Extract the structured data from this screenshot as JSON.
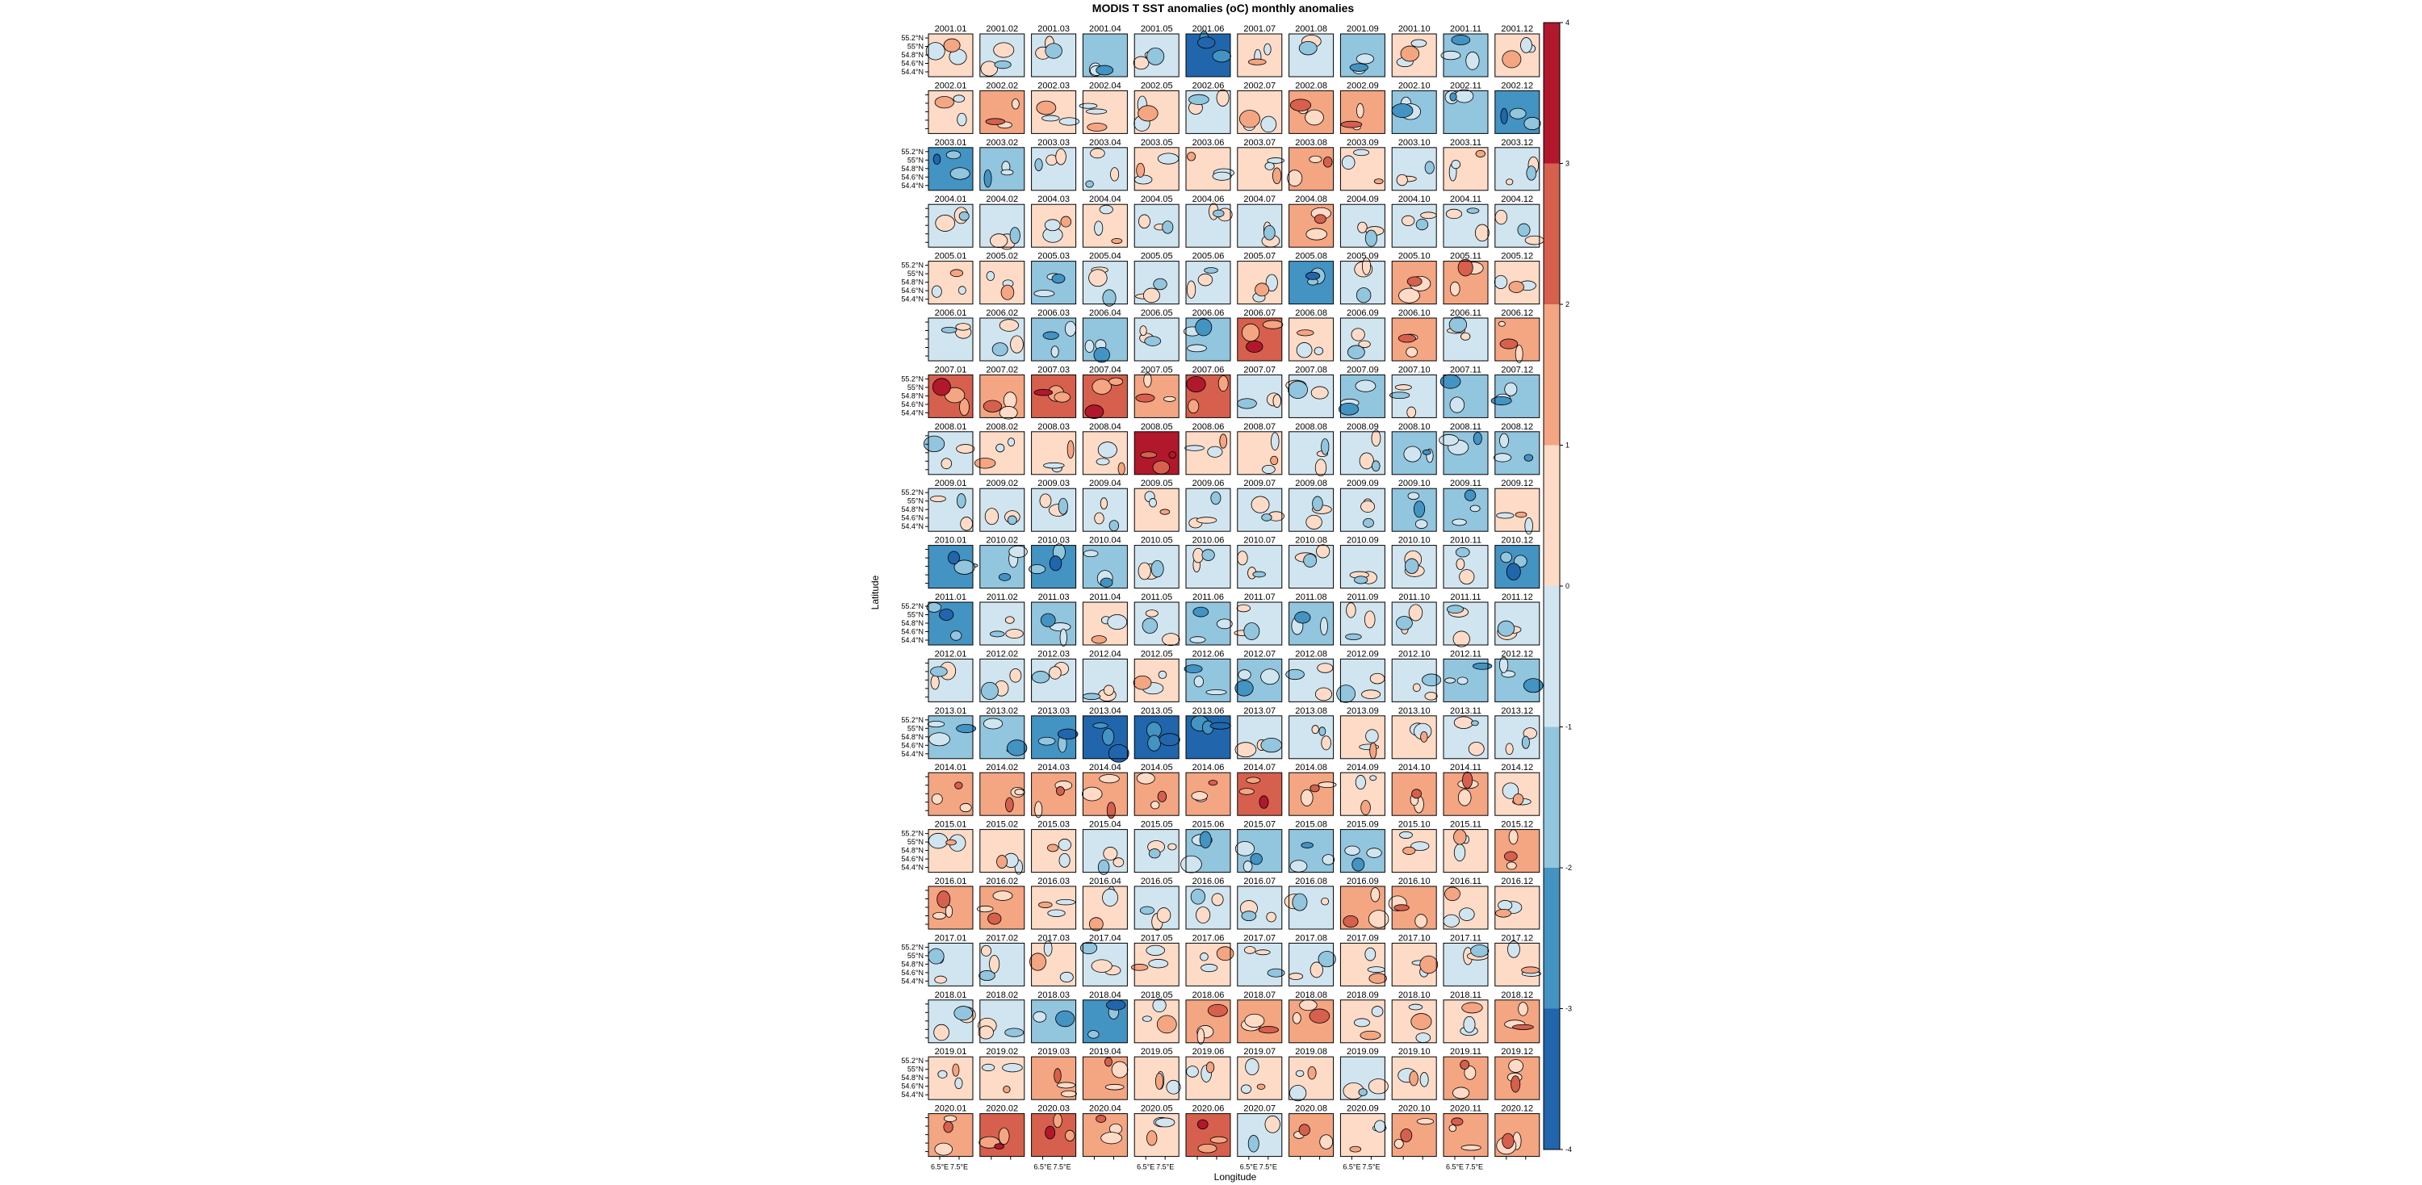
{
  "title": "MODIS T SST anomalies (oC) monthly anomalies",
  "xlabel": "Longitude",
  "ylabel": "Latitude",
  "chart_data": {
    "type": "heatmap",
    "title": "MODIS T SST anomalies (oC) monthly anomalies",
    "xlabel": "Longitude",
    "ylabel": "Latitude",
    "panel_layout": {
      "rows": 20,
      "columns": 12
    },
    "x_tick_labels": [
      "6.5°E",
      "7.5°E"
    ],
    "y_tick_labels": [
      "55.2°N",
      "55°N",
      "54.8°N",
      "54.6°N",
      "54.4°N"
    ],
    "colorbar": {
      "range": [
        -4,
        4
      ],
      "ticks": [
        "-4",
        "-3",
        "-2",
        "-1",
        "0",
        "1",
        "2",
        "3",
        "4"
      ],
      "bins": [
        {
          "from": -4,
          "to": -3,
          "color": "#2166ac"
        },
        {
          "from": -3,
          "to": -2,
          "color": "#4393c3"
        },
        {
          "from": -2,
          "to": -1,
          "color": "#92c5de"
        },
        {
          "from": -1,
          "to": 0,
          "color": "#d1e5f0"
        },
        {
          "from": 0,
          "to": 1,
          "color": "#fddbc7"
        },
        {
          "from": 1,
          "to": 2,
          "color": "#f4a582"
        },
        {
          "from": 2,
          "to": 3,
          "color": "#d6604d"
        },
        {
          "from": 3,
          "to": 4,
          "color": "#b2182b"
        }
      ]
    },
    "panels": [
      {
        "label": "2001.01",
        "mean_anomaly": 0.5
      },
      {
        "label": "2001.02",
        "mean_anomaly": -0.5
      },
      {
        "label": "2001.03",
        "mean_anomaly": -0.5
      },
      {
        "label": "2001.04",
        "mean_anomaly": -1.5
      },
      {
        "label": "2001.05",
        "mean_anomaly": -0.5
      },
      {
        "label": "2001.06",
        "mean_anomaly": -3.5
      },
      {
        "label": "2001.07",
        "mean_anomaly": 0.5
      },
      {
        "label": "2001.08",
        "mean_anomaly": -0.5
      },
      {
        "label": "2001.09",
        "mean_anomaly": -1.5
      },
      {
        "label": "2001.10",
        "mean_anomaly": 0.5
      },
      {
        "label": "2001.11",
        "mean_anomaly": -1.5
      },
      {
        "label": "2001.12",
        "mean_anomaly": 0.5
      },
      {
        "label": "2002.01",
        "mean_anomaly": 0.5
      },
      {
        "label": "2002.02",
        "mean_anomaly": 1.5
      },
      {
        "label": "2002.03",
        "mean_anomaly": 0.5
      },
      {
        "label": "2002.04",
        "mean_anomaly": 0.5
      },
      {
        "label": "2002.05",
        "mean_anomaly": 0.5
      },
      {
        "label": "2002.06",
        "mean_anomaly": -0.5
      },
      {
        "label": "2002.07",
        "mean_anomaly": 0.5
      },
      {
        "label": "2002.08",
        "mean_anomaly": 1.5
      },
      {
        "label": "2002.09",
        "mean_anomaly": 1.5
      },
      {
        "label": "2002.10",
        "mean_anomaly": -1.5
      },
      {
        "label": "2002.11",
        "mean_anomaly": -1.5
      },
      {
        "label": "2002.12",
        "mean_anomaly": -2.5
      },
      {
        "label": "2003.01",
        "mean_anomaly": -2.5
      },
      {
        "label": "2003.02",
        "mean_anomaly": -1.5
      },
      {
        "label": "2003.03",
        "mean_anomaly": -0.5
      },
      {
        "label": "2003.04",
        "mean_anomaly": -0.5
      },
      {
        "label": "2003.05",
        "mean_anomaly": 0.5
      },
      {
        "label": "2003.06",
        "mean_anomaly": 0.5
      },
      {
        "label": "2003.07",
        "mean_anomaly": 0.5
      },
      {
        "label": "2003.08",
        "mean_anomaly": 1.5
      },
      {
        "label": "2003.09",
        "mean_anomaly": 0.5
      },
      {
        "label": "2003.10",
        "mean_anomaly": -0.5
      },
      {
        "label": "2003.11",
        "mean_anomaly": 0.5
      },
      {
        "label": "2003.12",
        "mean_anomaly": -0.5
      },
      {
        "label": "2004.01",
        "mean_anomaly": -0.5
      },
      {
        "label": "2004.02",
        "mean_anomaly": -0.5
      },
      {
        "label": "2004.03",
        "mean_anomaly": 0.5
      },
      {
        "label": "2004.04",
        "mean_anomaly": 0.5
      },
      {
        "label": "2004.05",
        "mean_anomaly": -0.5
      },
      {
        "label": "2004.06",
        "mean_anomaly": -0.5
      },
      {
        "label": "2004.07",
        "mean_anomaly": -0.5
      },
      {
        "label": "2004.08",
        "mean_anomaly": 1.5
      },
      {
        "label": "2004.09",
        "mean_anomaly": -0.5
      },
      {
        "label": "2004.10",
        "mean_anomaly": -0.5
      },
      {
        "label": "2004.11",
        "mean_anomaly": -0.5
      },
      {
        "label": "2004.12",
        "mean_anomaly": -0.5
      },
      {
        "label": "2005.01",
        "mean_anomaly": 0.5
      },
      {
        "label": "2005.02",
        "mean_anomaly": 0.5
      },
      {
        "label": "2005.03",
        "mean_anomaly": -1.5
      },
      {
        "label": "2005.04",
        "mean_anomaly": -0.5
      },
      {
        "label": "2005.05",
        "mean_anomaly": -0.5
      },
      {
        "label": "2005.06",
        "mean_anomaly": -0.5
      },
      {
        "label": "2005.07",
        "mean_anomaly": 0.5
      },
      {
        "label": "2005.08",
        "mean_anomaly": -2.5
      },
      {
        "label": "2005.09",
        "mean_anomaly": -0.5
      },
      {
        "label": "2005.10",
        "mean_anomaly": 1.5
      },
      {
        "label": "2005.11",
        "mean_anomaly": 1.5
      },
      {
        "label": "2005.12",
        "mean_anomaly": 0.5
      },
      {
        "label": "2006.01",
        "mean_anomaly": -0.5
      },
      {
        "label": "2006.02",
        "mean_anomaly": -0.5
      },
      {
        "label": "2006.03",
        "mean_anomaly": -1.5
      },
      {
        "label": "2006.04",
        "mean_anomaly": -1.5
      },
      {
        "label": "2006.05",
        "mean_anomaly": -0.5
      },
      {
        "label": "2006.06",
        "mean_anomaly": -1.5
      },
      {
        "label": "2006.07",
        "mean_anomaly": 2.5
      },
      {
        "label": "2006.08",
        "mean_anomaly": 0.5
      },
      {
        "label": "2006.09",
        "mean_anomaly": -0.5
      },
      {
        "label": "2006.10",
        "mean_anomaly": 1.5
      },
      {
        "label": "2006.11",
        "mean_anomaly": -0.5
      },
      {
        "label": "2006.12",
        "mean_anomaly": 1.5
      },
      {
        "label": "2007.01",
        "mean_anomaly": 2.5
      },
      {
        "label": "2007.02",
        "mean_anomaly": 1.5
      },
      {
        "label": "2007.03",
        "mean_anomaly": 2.5
      },
      {
        "label": "2007.04",
        "mean_anomaly": 2.5
      },
      {
        "label": "2007.05",
        "mean_anomaly": 1.5
      },
      {
        "label": "2007.06",
        "mean_anomaly": 2.5
      },
      {
        "label": "2007.07",
        "mean_anomaly": -0.5
      },
      {
        "label": "2007.08",
        "mean_anomaly": -0.5
      },
      {
        "label": "2007.09",
        "mean_anomaly": -1.5
      },
      {
        "label": "2007.10",
        "mean_anomaly": -0.5
      },
      {
        "label": "2007.11",
        "mean_anomaly": -1.5
      },
      {
        "label": "2007.12",
        "mean_anomaly": -1.5
      },
      {
        "label": "2008.01",
        "mean_anomaly": -0.5
      },
      {
        "label": "2008.02",
        "mean_anomaly": 0.5
      },
      {
        "label": "2008.03",
        "mean_anomaly": 0.5
      },
      {
        "label": "2008.04",
        "mean_anomaly": 0.5
      },
      {
        "label": "2008.05",
        "mean_anomaly": 3.5
      },
      {
        "label": "2008.06",
        "mean_anomaly": 0.5
      },
      {
        "label": "2008.07",
        "mean_anomaly": 0.5
      },
      {
        "label": "2008.08",
        "mean_anomaly": -0.5
      },
      {
        "label": "2008.09",
        "mean_anomaly": -0.5
      },
      {
        "label": "2008.10",
        "mean_anomaly": -1.5
      },
      {
        "label": "2008.11",
        "mean_anomaly": -1.5
      },
      {
        "label": "2008.12",
        "mean_anomaly": -1.5
      },
      {
        "label": "2009.01",
        "mean_anomaly": -0.5
      },
      {
        "label": "2009.02",
        "mean_anomaly": -0.5
      },
      {
        "label": "2009.03",
        "mean_anomaly": -0.5
      },
      {
        "label": "2009.04",
        "mean_anomaly": -0.5
      },
      {
        "label": "2009.05",
        "mean_anomaly": 0.5
      },
      {
        "label": "2009.06",
        "mean_anomaly": -0.5
      },
      {
        "label": "2009.07",
        "mean_anomaly": -0.5
      },
      {
        "label": "2009.08",
        "mean_anomaly": -0.5
      },
      {
        "label": "2009.09",
        "mean_anomaly": -0.5
      },
      {
        "label": "2009.10",
        "mean_anomaly": -1.5
      },
      {
        "label": "2009.11",
        "mean_anomaly": -1.5
      },
      {
        "label": "2009.12",
        "mean_anomaly": 0.5
      },
      {
        "label": "2010.01",
        "mean_anomaly": -2.5
      },
      {
        "label": "2010.02",
        "mean_anomaly": -1.5
      },
      {
        "label": "2010.03",
        "mean_anomaly": -2.5
      },
      {
        "label": "2010.04",
        "mean_anomaly": -1.5
      },
      {
        "label": "2010.05",
        "mean_anomaly": -0.5
      },
      {
        "label": "2010.06",
        "mean_anomaly": -0.5
      },
      {
        "label": "2010.07",
        "mean_anomaly": -0.5
      },
      {
        "label": "2010.08",
        "mean_anomaly": -0.5
      },
      {
        "label": "2010.09",
        "mean_anomaly": -0.5
      },
      {
        "label": "2010.10",
        "mean_anomaly": -0.5
      },
      {
        "label": "2010.11",
        "mean_anomaly": -0.5
      },
      {
        "label": "2010.12",
        "mean_anomaly": -2.5
      },
      {
        "label": "2011.01",
        "mean_anomaly": -2.5
      },
      {
        "label": "2011.02",
        "mean_anomaly": -0.5
      },
      {
        "label": "2011.03",
        "mean_anomaly": -1.5
      },
      {
        "label": "2011.04",
        "mean_anomaly": 0.5
      },
      {
        "label": "2011.05",
        "mean_anomaly": -0.5
      },
      {
        "label": "2011.06",
        "mean_anomaly": -1.5
      },
      {
        "label": "2011.07",
        "mean_anomaly": -0.5
      },
      {
        "label": "2011.08",
        "mean_anomaly": -1.5
      },
      {
        "label": "2011.09",
        "mean_anomaly": -0.5
      },
      {
        "label": "2011.10",
        "mean_anomaly": -0.5
      },
      {
        "label": "2011.11",
        "mean_anomaly": -0.5
      },
      {
        "label": "2011.12",
        "mean_anomaly": -0.5
      },
      {
        "label": "2012.01",
        "mean_anomaly": -0.5
      },
      {
        "label": "2012.02",
        "mean_anomaly": -0.5
      },
      {
        "label": "2012.03",
        "mean_anomaly": -0.5
      },
      {
        "label": "2012.04",
        "mean_anomaly": -0.5
      },
      {
        "label": "2012.05",
        "mean_anomaly": 0.5
      },
      {
        "label": "2012.06",
        "mean_anomaly": -1.5
      },
      {
        "label": "2012.07",
        "mean_anomaly": -1.5
      },
      {
        "label": "2012.08",
        "mean_anomaly": -0.5
      },
      {
        "label": "2012.09",
        "mean_anomaly": -0.5
      },
      {
        "label": "2012.10",
        "mean_anomaly": -0.5
      },
      {
        "label": "2012.11",
        "mean_anomaly": -1.5
      },
      {
        "label": "2012.12",
        "mean_anomaly": -1.5
      },
      {
        "label": "2013.01",
        "mean_anomaly": -1.5
      },
      {
        "label": "2013.02",
        "mean_anomaly": -1.5
      },
      {
        "label": "2013.03",
        "mean_anomaly": -2.5
      },
      {
        "label": "2013.04",
        "mean_anomaly": -3.5
      },
      {
        "label": "2013.05",
        "mean_anomaly": -3.5
      },
      {
        "label": "2013.06",
        "mean_anomaly": -3.5
      },
      {
        "label": "2013.07",
        "mean_anomaly": -0.5
      },
      {
        "label": "2013.08",
        "mean_anomaly": -0.5
      },
      {
        "label": "2013.09",
        "mean_anomaly": 0.5
      },
      {
        "label": "2013.10",
        "mean_anomaly": 0.5
      },
      {
        "label": "2013.11",
        "mean_anomaly": -0.5
      },
      {
        "label": "2013.12",
        "mean_anomaly": -0.5
      },
      {
        "label": "2014.01",
        "mean_anomaly": 1.5
      },
      {
        "label": "2014.02",
        "mean_anomaly": 1.5
      },
      {
        "label": "2014.03",
        "mean_anomaly": 1.5
      },
      {
        "label": "2014.04",
        "mean_anomaly": 1.5
      },
      {
        "label": "2014.05",
        "mean_anomaly": 1.5
      },
      {
        "label": "2014.06",
        "mean_anomaly": 1.5
      },
      {
        "label": "2014.07",
        "mean_anomaly": 2.5
      },
      {
        "label": "2014.08",
        "mean_anomaly": 1.5
      },
      {
        "label": "2014.09",
        "mean_anomaly": 0.5
      },
      {
        "label": "2014.10",
        "mean_anomaly": 1.5
      },
      {
        "label": "2014.11",
        "mean_anomaly": 1.5
      },
      {
        "label": "2014.12",
        "mean_anomaly": 0.5
      },
      {
        "label": "2015.01",
        "mean_anomaly": 0.5
      },
      {
        "label": "2015.02",
        "mean_anomaly": 0.5
      },
      {
        "label": "2015.03",
        "mean_anomaly": 0.5
      },
      {
        "label": "2015.04",
        "mean_anomaly": -0.5
      },
      {
        "label": "2015.05",
        "mean_anomaly": -0.5
      },
      {
        "label": "2015.06",
        "mean_anomaly": -1.5
      },
      {
        "label": "2015.07",
        "mean_anomaly": -1.5
      },
      {
        "label": "2015.08",
        "mean_anomaly": -1.5
      },
      {
        "label": "2015.09",
        "mean_anomaly": -1.5
      },
      {
        "label": "2015.10",
        "mean_anomaly": 0.5
      },
      {
        "label": "2015.11",
        "mean_anomaly": 0.5
      },
      {
        "label": "2015.12",
        "mean_anomaly": 1.5
      },
      {
        "label": "2016.01",
        "mean_anomaly": 1.5
      },
      {
        "label": "2016.02",
        "mean_anomaly": 1.5
      },
      {
        "label": "2016.03",
        "mean_anomaly": 0.5
      },
      {
        "label": "2016.04",
        "mean_anomaly": 0.5
      },
      {
        "label": "2016.05",
        "mean_anomaly": -0.5
      },
      {
        "label": "2016.06",
        "mean_anomaly": -0.5
      },
      {
        "label": "2016.07",
        "mean_anomaly": -0.5
      },
      {
        "label": "2016.08",
        "mean_anomaly": -0.5
      },
      {
        "label": "2016.09",
        "mean_anomaly": 1.5
      },
      {
        "label": "2016.10",
        "mean_anomaly": 1.5
      },
      {
        "label": "2016.11",
        "mean_anomaly": 0.5
      },
      {
        "label": "2016.12",
        "mean_anomaly": 0.5
      },
      {
        "label": "2017.01",
        "mean_anomaly": -0.5
      },
      {
        "label": "2017.02",
        "mean_anomaly": -0.5
      },
      {
        "label": "2017.03",
        "mean_anomaly": 0.5
      },
      {
        "label": "2017.04",
        "mean_anomaly": -0.5
      },
      {
        "label": "2017.05",
        "mean_anomaly": 0.5
      },
      {
        "label": "2017.06",
        "mean_anomaly": 0.5
      },
      {
        "label": "2017.07",
        "mean_anomaly": -0.5
      },
      {
        "label": "2017.08",
        "mean_anomaly": -0.5
      },
      {
        "label": "2017.09",
        "mean_anomaly": 0.5
      },
      {
        "label": "2017.10",
        "mean_anomaly": 0.5
      },
      {
        "label": "2017.11",
        "mean_anomaly": -0.5
      },
      {
        "label": "2017.12",
        "mean_anomaly": 0.5
      },
      {
        "label": "2018.01",
        "mean_anomaly": -0.5
      },
      {
        "label": "2018.02",
        "mean_anomaly": -0.5
      },
      {
        "label": "2018.03",
        "mean_anomaly": -1.5
      },
      {
        "label": "2018.04",
        "mean_anomaly": -2.5
      },
      {
        "label": "2018.05",
        "mean_anomaly": 0.5
      },
      {
        "label": "2018.06",
        "mean_anomaly": 1.5
      },
      {
        "label": "2018.07",
        "mean_anomaly": 1.5
      },
      {
        "label": "2018.08",
        "mean_anomaly": 1.5
      },
      {
        "label": "2018.09",
        "mean_anomaly": 0.5
      },
      {
        "label": "2018.10",
        "mean_anomaly": 0.5
      },
      {
        "label": "2018.11",
        "mean_anomaly": 0.5
      },
      {
        "label": "2018.12",
        "mean_anomaly": 1.5
      },
      {
        "label": "2019.01",
        "mean_anomaly": 0.5
      },
      {
        "label": "2019.02",
        "mean_anomaly": 0.5
      },
      {
        "label": "2019.03",
        "mean_anomaly": 1.5
      },
      {
        "label": "2019.04",
        "mean_anomaly": 1.5
      },
      {
        "label": "2019.05",
        "mean_anomaly": 0.5
      },
      {
        "label": "2019.06",
        "mean_anomaly": 0.5
      },
      {
        "label": "2019.07",
        "mean_anomaly": 0.5
      },
      {
        "label": "2019.08",
        "mean_anomaly": 0.5
      },
      {
        "label": "2019.09",
        "mean_anomaly": -0.5
      },
      {
        "label": "2019.10",
        "mean_anomaly": 0.5
      },
      {
        "label": "2019.11",
        "mean_anomaly": 1.5
      },
      {
        "label": "2019.12",
        "mean_anomaly": 1.5
      },
      {
        "label": "2020.01",
        "mean_anomaly": 1.5
      },
      {
        "label": "2020.02",
        "mean_anomaly": 2.5
      },
      {
        "label": "2020.03",
        "mean_anomaly": 2.5
      },
      {
        "label": "2020.04",
        "mean_anomaly": 1.5
      },
      {
        "label": "2020.05",
        "mean_anomaly": 0.5
      },
      {
        "label": "2020.06",
        "mean_anomaly": 2.5
      },
      {
        "label": "2020.07",
        "mean_anomaly": -0.5
      },
      {
        "label": "2020.08",
        "mean_anomaly": 1.5
      },
      {
        "label": "2020.09",
        "mean_anomaly": 0.5
      },
      {
        "label": "2020.10",
        "mean_anomaly": 1.5
      },
      {
        "label": "2020.11",
        "mean_anomaly": 1.5
      },
      {
        "label": "2020.12",
        "mean_anomaly": 1.5
      }
    ]
  }
}
